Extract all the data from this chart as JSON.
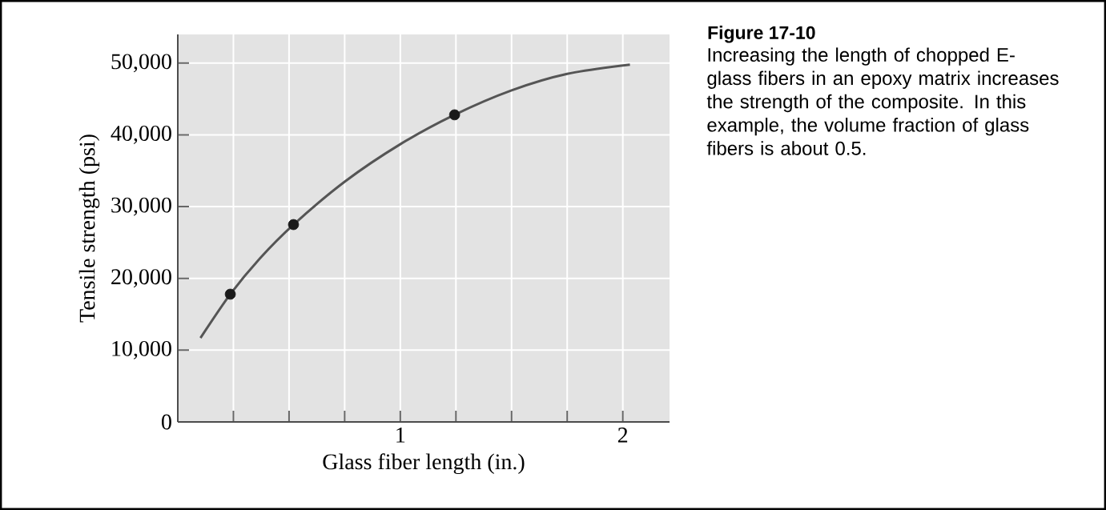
{
  "chart_data": {
    "type": "line",
    "title": "Figure 17-10",
    "xlabel": "Glass fiber length (in.)",
    "ylabel": "Tensile strength (psi)",
    "annotations": [
      "Increasing the length of chopped E-glass fibers in an epoxy matrix increases the strength of the composite. In this example, the volume fraction of glass fibers is about 0.5."
    ],
    "xlim": [
      0,
      2.21
    ],
    "ylim": [
      0,
      54000
    ],
    "xticks": [
      {
        "value": 0.25,
        "label": null
      },
      {
        "value": 0.5,
        "label": null
      },
      {
        "value": 0.75,
        "label": null
      },
      1,
      {
        "value": 1.25,
        "label": null
      },
      {
        "value": 1.5,
        "label": null
      },
      {
        "value": 1.75,
        "label": null
      },
      2
    ],
    "yticks": [
      0,
      {
        "value": 10000,
        "label": "10,000"
      },
      {
        "value": 20000,
        "label": "20,000"
      },
      {
        "value": 30000,
        "label": "30,000"
      },
      {
        "value": 40000,
        "label": "40,000"
      },
      {
        "value": 50000,
        "label": "50,000"
      }
    ],
    "grid": true,
    "series": [
      {
        "color": "#555555",
        "marker": "none",
        "x": [
          0.102,
          0.236,
          0.369,
          0.52,
          0.751,
          1.0,
          1.244,
          1.5,
          1.75,
          2.032
        ],
        "values": [
          11700,
          17800,
          22800,
          27500,
          33500,
          38700,
          42800,
          46200,
          48500,
          49800
        ]
      },
      {
        "type": "scatter",
        "color": "#1a1a1a",
        "marker": "circle",
        "x": [
          0.236,
          0.52,
          1.244
        ],
        "values": [
          17800,
          27500,
          42800
        ]
      }
    ]
  }
}
